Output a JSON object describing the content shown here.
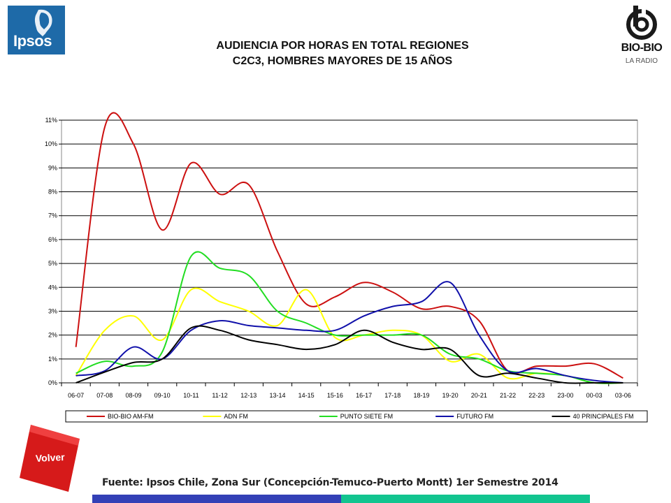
{
  "header": {
    "ipsos_logo_text": "Ipsos",
    "biobio_logo_name": "BIO-BIO",
    "biobio_logo_sub": "LA RADIO",
    "title_line1": "AUDIENCIA POR HORAS EN TOTAL REGIONES",
    "title_line2": "C2C3, HOMBRES MAYORES DE 15 AÑOS"
  },
  "footer": {
    "volver_label": "Volver",
    "source": "Fuente: Ipsos Chile, Zona Sur (Concepción-Temuco-Puerto Montt) 1er Semestre 2014",
    "bar_colors": [
      "#3340b6",
      "#12c48f"
    ]
  },
  "chart_data": {
    "type": "line",
    "title": "",
    "xlabel": "",
    "ylabel": "",
    "ylim": [
      0,
      11
    ],
    "y_ticks": [
      "0%",
      "1%",
      "2%",
      "3%",
      "4%",
      "5%",
      "6%",
      "7%",
      "8%",
      "9%",
      "10%",
      "11%"
    ],
    "grid": true,
    "legend_position": "bottom",
    "categories": [
      "06-07",
      "07-08",
      "08-09",
      "09-10",
      "10-11",
      "11-12",
      "12-13",
      "13-14",
      "14-15",
      "15-16",
      "16-17",
      "17-18",
      "18-19",
      "19-20",
      "20-21",
      "21-22",
      "22-23",
      "23-00",
      "00-03",
      "03-06"
    ],
    "series": [
      {
        "name": "BIO-BIO AM-FM",
        "color": "#cc1010",
        "values": [
          1.5,
          10.7,
          10.0,
          6.4,
          9.2,
          7.9,
          8.3,
          5.5,
          3.3,
          3.6,
          4.2,
          3.8,
          3.1,
          3.2,
          2.6,
          0.5,
          0.7,
          0.7,
          0.8,
          0.2
        ]
      },
      {
        "name": "ADN FM",
        "color": "#ffff00",
        "values": [
          0.3,
          2.2,
          2.8,
          1.8,
          3.9,
          3.4,
          3.0,
          2.4,
          3.9,
          1.9,
          2.0,
          2.2,
          2.0,
          0.9,
          1.2,
          0.2,
          0.4,
          0.3,
          0.0,
          0.0
        ]
      },
      {
        "name": "PUNTO SIETE FM",
        "color": "#22dd22",
        "values": [
          0.4,
          0.9,
          0.7,
          1.3,
          5.3,
          4.8,
          4.5,
          3.0,
          2.5,
          2.0,
          2.0,
          2.0,
          2.0,
          1.2,
          1.0,
          0.5,
          0.4,
          0.3,
          0.0,
          0.0
        ]
      },
      {
        "name": "FUTURO FM",
        "color": "#1010aa",
        "values": [
          0.3,
          0.5,
          1.5,
          1.0,
          2.2,
          2.6,
          2.4,
          2.3,
          2.2,
          2.2,
          2.8,
          3.2,
          3.4,
          4.2,
          2.0,
          0.5,
          0.6,
          0.3,
          0.1,
          0.0
        ]
      },
      {
        "name": "40 PRINCIPALES FM",
        "color": "#000000",
        "values": [
          0.0,
          0.45,
          0.85,
          1.0,
          2.3,
          2.2,
          1.8,
          1.6,
          1.4,
          1.6,
          2.2,
          1.7,
          1.4,
          1.4,
          0.3,
          0.4,
          0.2,
          0.0,
          0.0,
          0.0
        ]
      }
    ]
  }
}
